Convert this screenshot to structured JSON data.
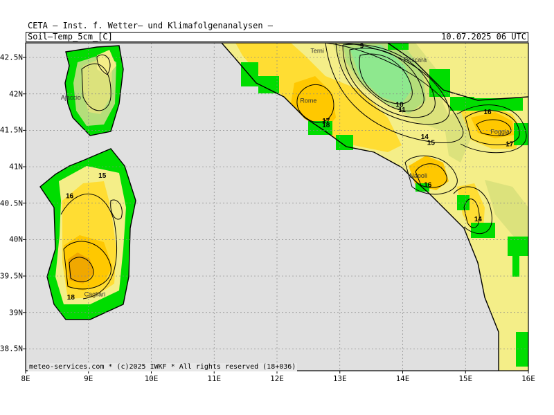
{
  "header": {
    "title": "CETA — Inst. f. Wetter— und Klimafolgenanalysen —",
    "parameter": "Soil—Temp_5cm_[C]",
    "datetime": "10.07.2025 06 UTC"
  },
  "footer": {
    "credit": "meteo-services.com * (c)2025 IWKF * All rights reserved (18+036)"
  },
  "axes": {
    "lon": {
      "min": 8,
      "max": 16,
      "labels": [
        "8E",
        "9E",
        "10E",
        "11E",
        "12E",
        "13E",
        "14E",
        "15E",
        "16E"
      ]
    },
    "lat": {
      "min": 38.2,
      "max": 42.7,
      "labels": [
        "38.5N",
        "39N",
        "39.5N",
        "40N",
        "40.5N",
        "41N",
        "41.5N",
        "42N",
        "42.5N"
      ],
      "values": [
        38.5,
        39,
        39.5,
        40,
        40.5,
        41,
        41.5,
        42,
        42.5
      ]
    }
  },
  "colors": {
    "sea": "#e0e0e0",
    "land_missing": "#00dd00",
    "t_lt10": "#8ee88e",
    "t_10_12": "#b4de7a",
    "t_12_14": "#dce27c",
    "t_14_16": "#f4ee88",
    "t_16_17": "#ffdd33",
    "t_17_18": "#ffc800",
    "t_gt18": "#f0a800"
  },
  "cities": [
    {
      "name": "Ajaccio",
      "lon": 8.72,
      "lat": 41.92
    },
    {
      "name": "Terni",
      "lon": 12.64,
      "lat": 42.56
    },
    {
      "name": "Pescara",
      "lon": 14.2,
      "lat": 42.44
    },
    {
      "name": "Rome",
      "lon": 12.5,
      "lat": 41.88
    },
    {
      "name": "Foggia",
      "lon": 15.55,
      "lat": 41.45
    },
    {
      "name": "Napoli",
      "lon": 14.25,
      "lat": 40.85
    },
    {
      "name": "Cagliari",
      "lon": 9.1,
      "lat": 39.22
    }
  ],
  "contour_labels": [
    {
      "text": "9",
      "lon": 13.35,
      "lat": 42.63
    },
    {
      "text": "10",
      "lon": 13.95,
      "lat": 41.82
    },
    {
      "text": "11",
      "lon": 13.99,
      "lat": 41.75
    },
    {
      "text": "17",
      "lon": 12.78,
      "lat": 41.6
    },
    {
      "text": "18",
      "lon": 12.78,
      "lat": 41.54
    },
    {
      "text": "14",
      "lon": 14.35,
      "lat": 41.38
    },
    {
      "text": "15",
      "lon": 14.45,
      "lat": 41.3
    },
    {
      "text": "16",
      "lon": 15.35,
      "lat": 41.72
    },
    {
      "text": "17",
      "lon": 15.7,
      "lat": 41.28
    },
    {
      "text": "16",
      "lon": 14.4,
      "lat": 40.72
    },
    {
      "text": "14",
      "lon": 15.2,
      "lat": 40.25
    },
    {
      "text": "15",
      "lon": 9.22,
      "lat": 40.85
    },
    {
      "text": "16",
      "lon": 8.7,
      "lat": 40.57
    },
    {
      "text": "18",
      "lon": 8.72,
      "lat": 39.18
    }
  ]
}
